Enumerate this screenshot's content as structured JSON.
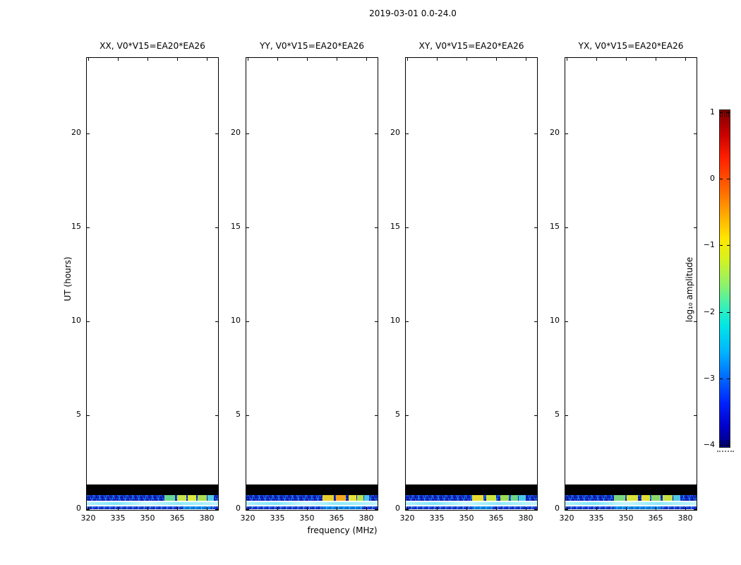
{
  "figure": {
    "title": "2019-03-01 0.0-24.0"
  },
  "axes": {
    "xlabel": "frequency (MHz)",
    "ylabel": "UT (hours)"
  },
  "colorbar": {
    "label": "log₁₀ amplitude",
    "tick_labels": [
      "1",
      "0",
      "−1",
      "−2",
      "−3",
      "−4"
    ]
  },
  "chart_data": {
    "type": "heatmap",
    "title": "2019-03-01 0.0-24.0",
    "xlabel": "frequency (MHz)",
    "ylabel": "UT (hours)",
    "xlim_mhz": [
      320,
      387
    ],
    "ylim_hours": [
      0,
      24
    ],
    "x_ticks_mhz": [
      320,
      335,
      350,
      365,
      380
    ],
    "y_ticks_hours": [
      0,
      5,
      10,
      15,
      20
    ],
    "grid": false,
    "colorbar": {
      "label": "log₁₀ amplitude",
      "colormap": "jet",
      "vmin": -4,
      "vmax": 1,
      "ticks": [
        1,
        0,
        -1,
        -2,
        -3,
        -4
      ]
    },
    "time_bands": [
      {
        "ut_start": 0.75,
        "ut_end": 1.31,
        "kind": "flagged-black",
        "log10_amp": null
      },
      {
        "ut_start": 0.45,
        "ut_end": 0.75,
        "kind": "noise-with-rfi",
        "log10_amp_background": -3
      },
      {
        "ut_start": 0.22,
        "ut_end": 0.37,
        "kind": "bright-cyan-stripe",
        "log10_amp": -2
      },
      {
        "ut_start": 0.0,
        "ut_end": 0.15,
        "kind": "noise",
        "log10_amp": -3
      }
    ],
    "blank_region_hours": [
      1.31,
      24
    ],
    "panels": [
      {
        "title": "XX, V0*V15=EA20*EA26",
        "polarization": "XX",
        "baseline": "V0*V15=EA20*EA26",
        "rfi_patches_mhz": [
          [
            358.5,
            364,
            "#66d795"
          ],
          [
            365,
            369.5,
            "#c6e44b"
          ],
          [
            370.5,
            374.5,
            "#dcea3e"
          ],
          [
            375.5,
            380,
            "#a8e055"
          ],
          [
            380.5,
            383.5,
            "#55cbe8"
          ]
        ],
        "noise2_bright_mhz": [
          368,
          382
        ]
      },
      {
        "title": "YY, V0*V15=EA20*EA26",
        "polarization": "YY",
        "baseline": "V0*V15=EA20*EA26",
        "rfi_patches_mhz": [
          [
            358,
            363.5,
            "#e8cf2e"
          ],
          [
            364.5,
            369.5,
            "#f2a81f"
          ],
          [
            371,
            375,
            "#e8e23c"
          ],
          [
            375.5,
            378.5,
            "#b8e24e"
          ],
          [
            379,
            381.5,
            "#4ec4ea"
          ]
        ],
        "noise2_bright_mhz": [
          358,
          378
        ]
      },
      {
        "title": "XY, V0*V15=EA20*EA26",
        "polarization": "XY",
        "baseline": "V0*V15=EA20*EA26",
        "rfi_patches_mhz": [
          [
            353,
            358.5,
            "#e8dc32"
          ],
          [
            360,
            365,
            "#cce442"
          ],
          [
            367,
            371.5,
            "#9edc55"
          ],
          [
            372.5,
            376,
            "#6fd488"
          ],
          [
            376.5,
            380,
            "#48c8e8"
          ]
        ],
        "noise2_bright_mhz": [
          353,
          363
        ]
      },
      {
        "title": "YX, V0*V15=EA20*EA26",
        "polarization": "YX",
        "baseline": "V0*V15=EA20*EA26",
        "rfi_patches_mhz": [
          [
            344,
            349.5,
            "#7cd87c"
          ],
          [
            350.5,
            356,
            "#d8e438"
          ],
          [
            358,
            362,
            "#e0e034"
          ],
          [
            363,
            367.5,
            "#8cd86a"
          ],
          [
            368.5,
            373.5,
            "#c4e246"
          ],
          [
            374,
            377.5,
            "#50c8e6"
          ]
        ],
        "noise2_bright_mhz": [
          344,
          368
        ]
      }
    ]
  }
}
